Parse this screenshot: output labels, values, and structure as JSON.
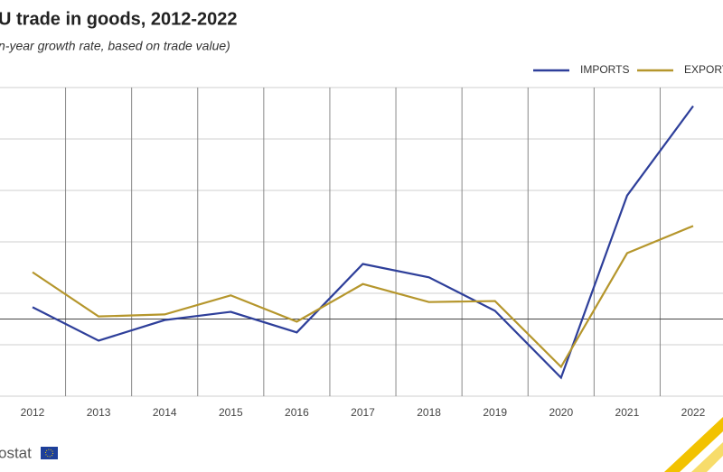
{
  "chart_data": {
    "type": "line",
    "title": "U trade in goods, 2012-2022",
    "subtitle": "n-year growth rate, based on trade value)",
    "categories": [
      "2012",
      "2013",
      "2014",
      "2015",
      "2016",
      "2017",
      "2018",
      "2019",
      "2020",
      "2021",
      "2022"
    ],
    "series": [
      {
        "name": "IMPORTS",
        "color": "#2e3f9a",
        "values": [
          2.3,
          -4.2,
          -0.2,
          1.4,
          -2.6,
          10.7,
          8.1,
          1.6,
          -11.4,
          24.0,
          41.4
        ]
      },
      {
        "name": "EXPORTS",
        "color": "#b5962c",
        "values": [
          9.1,
          0.5,
          0.9,
          4.6,
          -0.5,
          6.8,
          3.3,
          3.5,
          -9.3,
          12.8,
          18.1
        ]
      }
    ],
    "ylim": [
      -15,
      45
    ],
    "yticks": [
      -15,
      -5,
      5,
      15,
      25,
      35,
      45
    ],
    "grid": true,
    "footer": "ostat"
  }
}
